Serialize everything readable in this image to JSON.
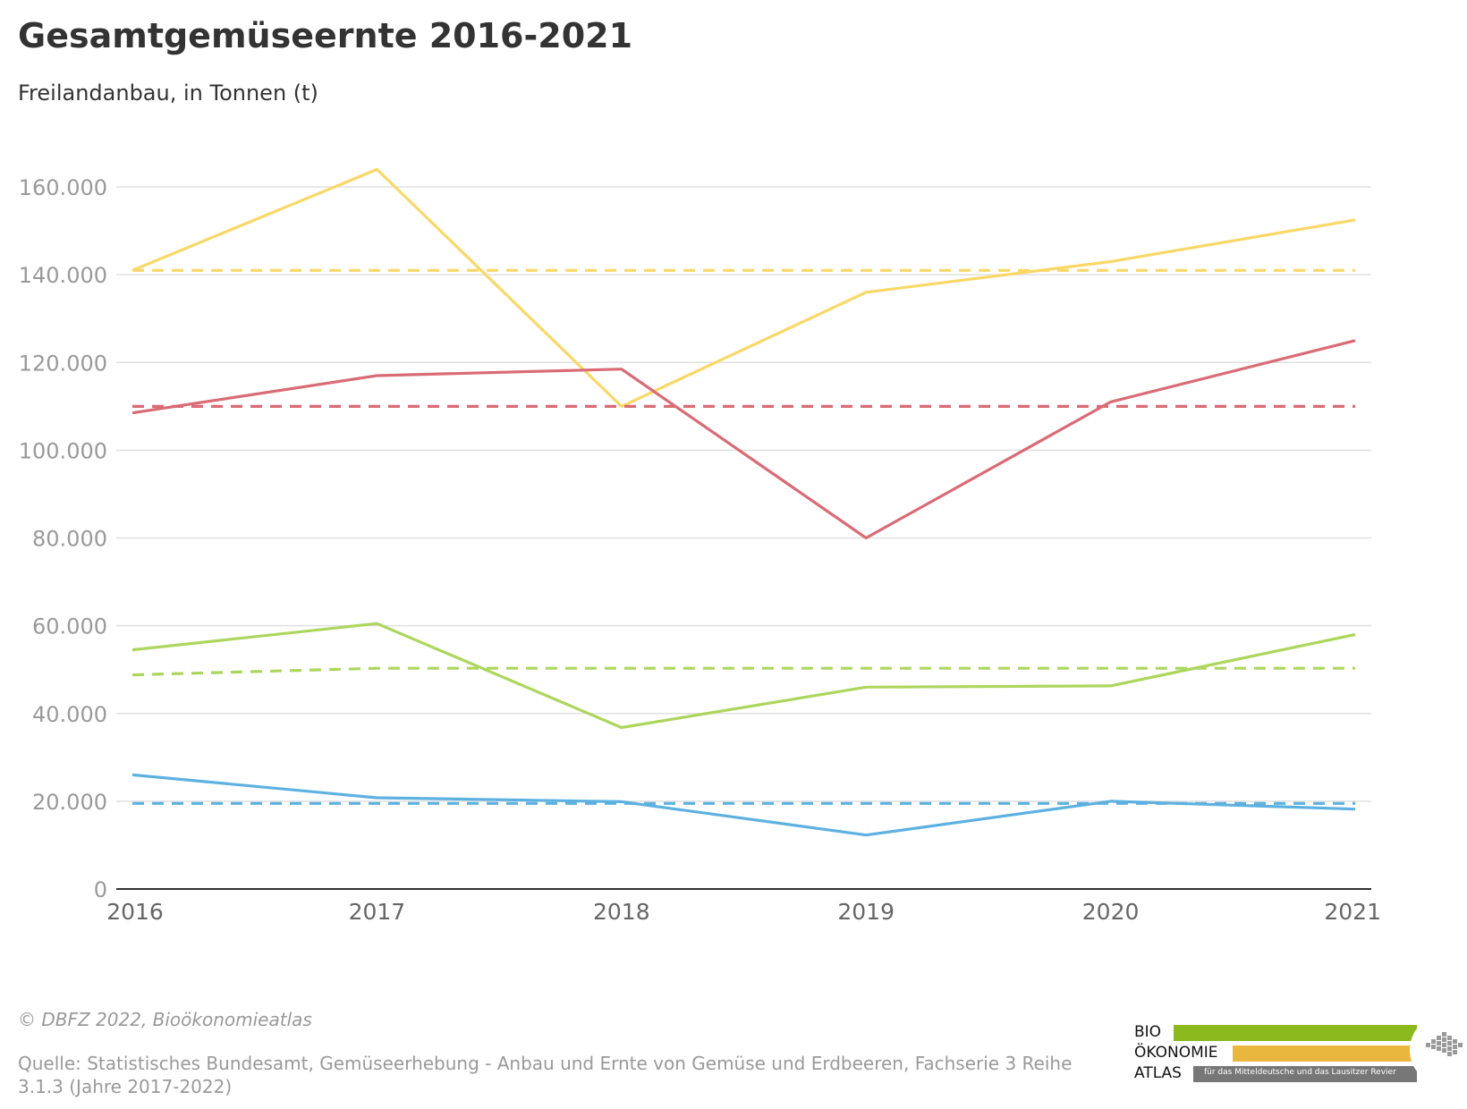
{
  "title": "Gesamtgemüseernte 2016-2021",
  "subtitle": "Freilandanbau, in Tonnen (t)",
  "credit": "© DBFZ 2022, Bioökonomieatlas",
  "source": "Quelle: Statistisches Bundesamt, Gemüseerhebung - Anbau und Ernte von Gemüse und Erdbeeren, Fachserie 3 Reihe 3.1.3 (Jahre 2017-2022)",
  "logo": {
    "line1": "BIO",
    "line2": "ÖKONOMIE",
    "line3": "ATLAS",
    "tagline": "für das Mitteldeutsche und das Lausitzer Revier",
    "colors": {
      "green": "#8cba1e",
      "orange": "#eab73e",
      "gray": "#777777"
    }
  },
  "chart_data": {
    "type": "line",
    "x": [
      "2016",
      "2017",
      "2018",
      "2019",
      "2020",
      "2021"
    ],
    "ylim": [
      0,
      170000
    ],
    "yticks": [
      0,
      20000,
      40000,
      60000,
      80000,
      100000,
      120000,
      140000,
      160000
    ],
    "ytick_labels": [
      "0",
      "20.000",
      "40.000",
      "60.000",
      "80.000",
      "100.000",
      "120.000",
      "140.000",
      "160.000"
    ],
    "grid": true,
    "legend": "none",
    "series": [
      {
        "color": "#f9d867",
        "style": "solid",
        "values": [
          141000,
          164000,
          110000,
          136000,
          143000,
          152500
        ]
      },
      {
        "color": "#f9d867",
        "style": "dashed",
        "values": [
          141000,
          141000,
          141000,
          141000,
          141000,
          141000
        ]
      },
      {
        "color": "#d96b75",
        "style": "solid",
        "values": [
          108500,
          117000,
          118500,
          80000,
          111000,
          125000
        ]
      },
      {
        "color": "#d96b75",
        "style": "dashed",
        "values": [
          110000,
          110000,
          110000,
          110000,
          110000,
          110000
        ]
      },
      {
        "color": "#acd65d",
        "style": "solid",
        "values": [
          54500,
          60500,
          36800,
          46000,
          46300,
          58000
        ]
      },
      {
        "color": "#acd65d",
        "style": "dashed",
        "values": [
          48800,
          50300,
          50300,
          50300,
          50300,
          50300
        ]
      },
      {
        "color": "#5db1e1",
        "style": "solid",
        "values": [
          26000,
          20800,
          19900,
          12300,
          20000,
          18200
        ]
      },
      {
        "color": "#5db1e1",
        "style": "dashed",
        "values": [
          19500,
          19500,
          19500,
          19500,
          19500,
          19500
        ]
      }
    ]
  }
}
